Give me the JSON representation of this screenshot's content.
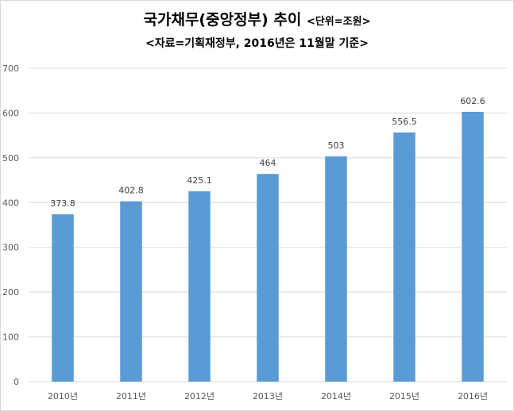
{
  "chart_data": {
    "type": "bar",
    "title": "국가채무(중앙정부) 추이",
    "title_unit": "<단위=조원>",
    "subtitle": "<자료=기획재정부, 2016년은 11월말 기준>",
    "categories": [
      "2010년",
      "2011년",
      "2012년",
      "2013년",
      "2014년",
      "2015년",
      "2016년"
    ],
    "values": [
      373.8,
      402.8,
      425.1,
      464,
      503,
      556.5,
      602.6
    ],
    "value_labels": [
      "373.8",
      "402.8",
      "425.1",
      "464",
      "503",
      "556.5",
      "602.6"
    ],
    "ylim": [
      0,
      700
    ],
    "yticks": [
      0,
      100,
      200,
      300,
      400,
      500,
      600,
      700
    ],
    "xlabel": "",
    "ylabel": "",
    "grid": true,
    "legend": "none",
    "bar_color": "#5b9bd5"
  }
}
